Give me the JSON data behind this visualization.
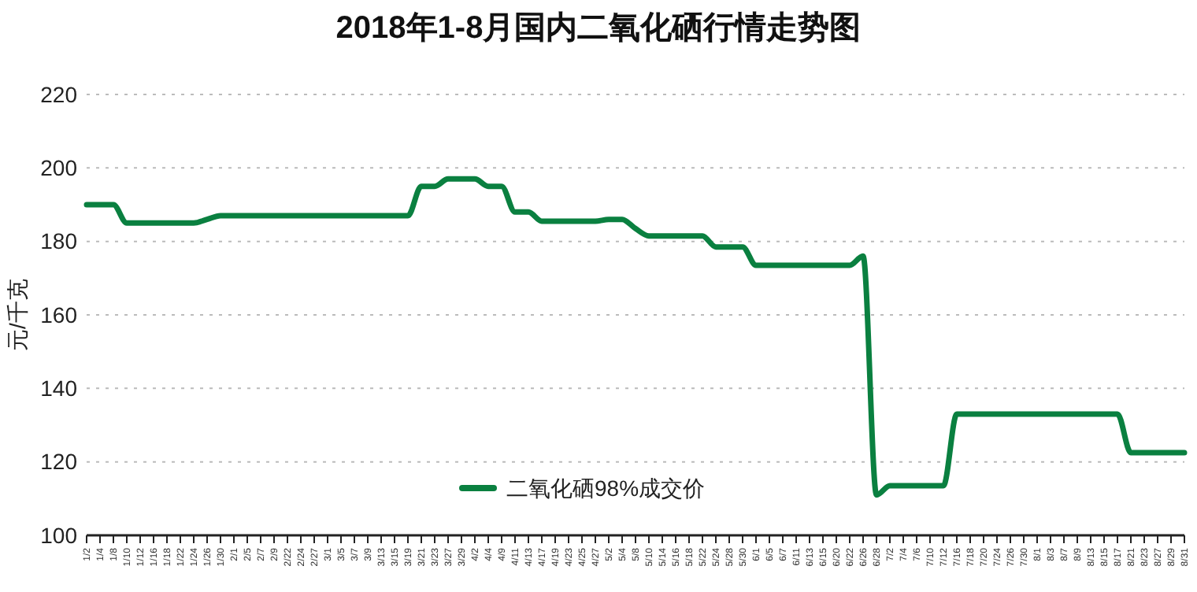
{
  "chart_data": {
    "type": "line",
    "title": "2018年1-8月国内二氧化硒行情走势图",
    "ylabel": "元/千克",
    "categories": [
      "1/2",
      "1/4",
      "1/8",
      "1/10",
      "1/12",
      "1/16",
      "1/18",
      "1/22",
      "1/24",
      "1/26",
      "1/30",
      "2/1",
      "2/5",
      "2/7",
      "2/9",
      "2/22",
      "2/24",
      "2/27",
      "3/1",
      "3/5",
      "3/7",
      "3/9",
      "3/13",
      "3/15",
      "3/19",
      "3/21",
      "3/23",
      "3/27",
      "3/29",
      "4/2",
      "4/4",
      "4/9",
      "4/11",
      "4/13",
      "4/17",
      "4/19",
      "4/23",
      "4/25",
      "4/27",
      "5/2",
      "5/4",
      "5/8",
      "5/10",
      "5/14",
      "5/16",
      "5/18",
      "5/22",
      "5/24",
      "5/28",
      "5/30",
      "6/1",
      "6/5",
      "6/7",
      "6/11",
      "6/13",
      "6/15",
      "6/20",
      "6/22",
      "6/26",
      "6/28",
      "7/2",
      "7/4",
      "7/6",
      "7/10",
      "7/12",
      "7/16",
      "7/18",
      "7/20",
      "7/24",
      "7/26",
      "7/30",
      "8/1",
      "8/3",
      "8/7",
      "8/9",
      "8/13",
      "8/15",
      "8/17",
      "8/21",
      "8/23",
      "8/27",
      "8/29",
      "8/31"
    ],
    "series": [
      {
        "name": "二氧化硒98%成交价",
        "color": "#0a8040",
        "values": [
          190,
          190,
          190,
          185,
          185,
          185,
          185,
          185,
          185,
          186,
          187,
          187,
          187,
          187,
          187,
          187,
          187,
          187,
          187,
          187,
          187,
          187,
          187,
          187,
          187,
          195,
          195,
          197,
          197,
          197,
          195,
          195,
          188,
          188,
          185.5,
          185.5,
          185.5,
          185.5,
          185.5,
          186,
          186,
          183.5,
          181.5,
          181.5,
          181.5,
          181.5,
          181.5,
          178.5,
          178.5,
          178.5,
          173.5,
          173.5,
          173.5,
          173.5,
          173.5,
          173.5,
          173.5,
          173.5,
          176,
          111,
          113.5,
          113.5,
          113.5,
          113.5,
          113.5,
          133,
          133,
          133,
          133,
          133,
          133,
          133,
          133,
          133,
          133,
          133,
          133,
          133,
          122.5,
          122.5,
          122.5,
          122.5,
          122.5
        ]
      }
    ],
    "ylim": [
      100,
      220
    ],
    "yticks": [
      100,
      120,
      140,
      160,
      180,
      200,
      220
    ],
    "grid": "y",
    "legend": "bottom",
    "line_style": "solid",
    "marker": "none"
  }
}
